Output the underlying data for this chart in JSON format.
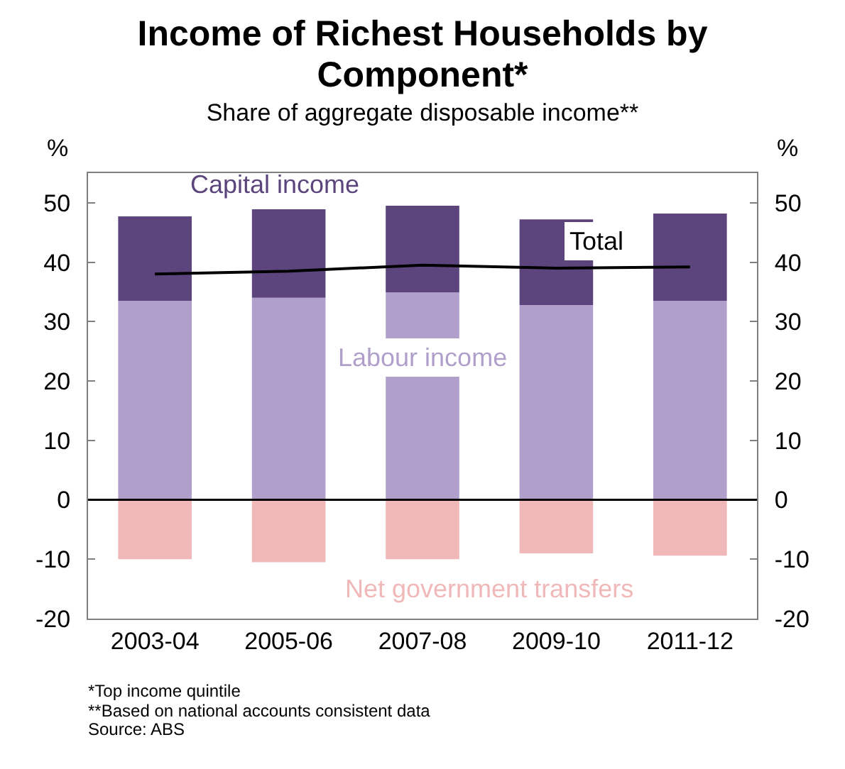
{
  "chart_data": {
    "type": "bar",
    "title": "Income of Richest Households by Component*",
    "subtitle": "Share of aggregate disposable income**",
    "ylabel": "%",
    "y2label": "%",
    "categories": [
      "2003-04",
      "2005-06",
      "2007-08",
      "2009-10",
      "2011-12"
    ],
    "stacked": true,
    "series": [
      {
        "name": "Labour income",
        "color": "#b09fca",
        "values": [
          33.5,
          34,
          34.9,
          32.8,
          33.5
        ]
      },
      {
        "name": "Capital income",
        "color": "#5c457c",
        "values": [
          14.2,
          14.9,
          14.6,
          14.4,
          14.7
        ]
      },
      {
        "name": "Net government transfers",
        "color": "#f0b8b8",
        "values": [
          -10,
          -10.5,
          -10,
          -9,
          -9.4
        ]
      },
      {
        "name": "Total",
        "type": "line",
        "color": "#000000",
        "values": [
          38,
          38.5,
          39.5,
          39,
          39.2
        ]
      }
    ],
    "ylim": [
      -20,
      55
    ],
    "yticks": [
      -20,
      -10,
      0,
      10,
      20,
      30,
      40,
      50
    ],
    "y2lim": [
      -20,
      55
    ],
    "y2ticks": [
      -20,
      -10,
      0,
      10,
      20,
      30,
      40,
      50
    ],
    "grid": false,
    "ref_lines": [
      {
        "axis": "y",
        "value": 0,
        "color": "#000000"
      }
    ],
    "annotations": [
      "*Top income quintile",
      "**Based on national accounts consistent data",
      "Source: ABS"
    ]
  }
}
